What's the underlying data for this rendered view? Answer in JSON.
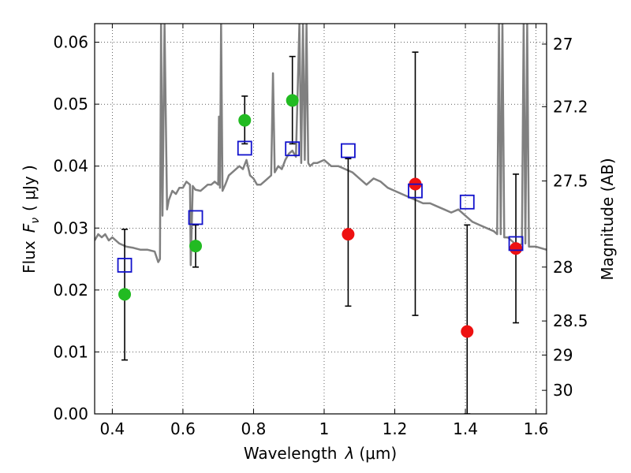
{
  "chart_data": {
    "type": "scatter",
    "xlabel": "Wavelength",
    "xlabel_symbol": "λ",
    "xlabel_unit": "(μm)",
    "ylabel": "Flux",
    "ylabel_symbol": "F",
    "ylabel_sub": "ν",
    "ylabel_unit": "( μJy )",
    "y2label": "Magnitude (AB)",
    "xlim": [
      0.35,
      1.63
    ],
    "ylim": [
      0.0,
      0.063
    ],
    "grid": true,
    "x_ticks": [
      {
        "value": 0.4,
        "label": "0.4"
      },
      {
        "value": 0.6,
        "label": "0.6"
      },
      {
        "value": 0.8,
        "label": "0.8"
      },
      {
        "value": 1.0,
        "label": "1"
      },
      {
        "value": 1.2,
        "label": "1.2"
      },
      {
        "value": 1.4,
        "label": "1.4"
      },
      {
        "value": 1.6,
        "label": "1.6"
      }
    ],
    "y_ticks": [
      {
        "value": 0.0,
        "label": "0.00"
      },
      {
        "value": 0.01,
        "label": "0.01"
      },
      {
        "value": 0.02,
        "label": "0.02"
      },
      {
        "value": 0.03,
        "label": "0.03"
      },
      {
        "value": 0.04,
        "label": "0.04"
      },
      {
        "value": 0.05,
        "label": "0.05"
      },
      {
        "value": 0.06,
        "label": "0.06"
      }
    ],
    "y2_ticks": [
      {
        "flux": 0.0597,
        "label": "27"
      },
      {
        "flux": 0.0496,
        "label": "27.2"
      },
      {
        "flux": 0.0376,
        "label": "27.5"
      },
      {
        "flux": 0.0237,
        "label": "28"
      },
      {
        "flux": 0.015,
        "label": "28.5"
      },
      {
        "flux": 0.0095,
        "label": "29"
      },
      {
        "flux": 0.0038,
        "label": "30"
      }
    ],
    "series": [
      {
        "role": "observed-optical",
        "marker": "circle",
        "color": "#22bb22",
        "points": [
          {
            "x": 0.435,
            "y": 0.0193,
            "err_low": 0.0087,
            "err_high": 0.0298
          },
          {
            "x": 0.636,
            "y": 0.0271,
            "err_low": 0.0237,
            "err_high": 0.0305
          },
          {
            "x": 0.775,
            "y": 0.0474,
            "err_low": 0.0436,
            "err_high": 0.0513
          },
          {
            "x": 0.91,
            "y": 0.0506,
            "err_low": 0.0436,
            "err_high": 0.0577
          }
        ]
      },
      {
        "role": "observed-ir",
        "marker": "circle",
        "color": "#ee1111",
        "points": [
          {
            "x": 1.068,
            "y": 0.029,
            "err_low": 0.0174,
            "err_high": 0.0412
          },
          {
            "x": 1.258,
            "y": 0.0371,
            "err_low": 0.0159,
            "err_high": 0.0584
          },
          {
            "x": 1.405,
            "y": 0.0133,
            "err_low": 0.0,
            "err_high": 0.0305
          },
          {
            "x": 1.543,
            "y": 0.0267,
            "err_low": 0.0147,
            "err_high": 0.0387
          }
        ]
      },
      {
        "role": "model-photometry",
        "marker": "open-square",
        "color": "#1111cc",
        "points": [
          {
            "x": 0.435,
            "y": 0.024
          },
          {
            "x": 0.636,
            "y": 0.0317
          },
          {
            "x": 0.775,
            "y": 0.0429
          },
          {
            "x": 0.91,
            "y": 0.0428
          },
          {
            "x": 1.068,
            "y": 0.0425
          },
          {
            "x": 1.258,
            "y": 0.036
          },
          {
            "x": 1.405,
            "y": 0.0342
          },
          {
            "x": 1.543,
            "y": 0.0275
          }
        ]
      }
    ],
    "model_spectrum": {
      "color": "#808080",
      "x": [
        0.35,
        0.36,
        0.37,
        0.38,
        0.39,
        0.4,
        0.42,
        0.44,
        0.46,
        0.48,
        0.5,
        0.52,
        0.53,
        0.535,
        0.538,
        0.542,
        0.548,
        0.555,
        0.56,
        0.57,
        0.58,
        0.59,
        0.6,
        0.61,
        0.62,
        0.622,
        0.628,
        0.635,
        0.65,
        0.66,
        0.67,
        0.68,
        0.69,
        0.7,
        0.702,
        0.705,
        0.708,
        0.712,
        0.72,
        0.73,
        0.74,
        0.75,
        0.76,
        0.77,
        0.78,
        0.79,
        0.8,
        0.81,
        0.82,
        0.83,
        0.84,
        0.85,
        0.855,
        0.86,
        0.87,
        0.88,
        0.89,
        0.9,
        0.91,
        0.92,
        0.93,
        0.935,
        0.94,
        0.945,
        0.95,
        0.955,
        0.96,
        0.97,
        0.98,
        1.0,
        1.02,
        1.04,
        1.06,
        1.08,
        1.1,
        1.12,
        1.14,
        1.16,
        1.18,
        1.2,
        1.22,
        1.24,
        1.26,
        1.28,
        1.3,
        1.32,
        1.34,
        1.36,
        1.38,
        1.4,
        1.42,
        1.44,
        1.46,
        1.48,
        1.49,
        1.495,
        1.5,
        1.505,
        1.51,
        1.52,
        1.53,
        1.54,
        1.55,
        1.56,
        1.565,
        1.57,
        1.575,
        1.58,
        1.6,
        1.63
      ],
      "y": [
        0.028,
        0.029,
        0.0285,
        0.029,
        0.028,
        0.0285,
        0.0275,
        0.027,
        0.0268,
        0.0265,
        0.0265,
        0.0262,
        0.0245,
        0.025,
        0.063,
        0.032,
        0.063,
        0.033,
        0.0345,
        0.036,
        0.0355,
        0.0365,
        0.0365,
        0.0375,
        0.037,
        0.024,
        0.0368,
        0.0362,
        0.036,
        0.0365,
        0.037,
        0.037,
        0.0375,
        0.037,
        0.048,
        0.0365,
        0.063,
        0.036,
        0.037,
        0.0385,
        0.039,
        0.0395,
        0.04,
        0.0395,
        0.041,
        0.0385,
        0.038,
        0.037,
        0.037,
        0.0375,
        0.038,
        0.0385,
        0.055,
        0.039,
        0.04,
        0.0395,
        0.041,
        0.042,
        0.0425,
        0.0415,
        0.063,
        0.0405,
        0.063,
        0.041,
        0.063,
        0.0405,
        0.04,
        0.0405,
        0.0405,
        0.041,
        0.04,
        0.04,
        0.0395,
        0.039,
        0.038,
        0.037,
        0.038,
        0.0375,
        0.0365,
        0.036,
        0.0355,
        0.035,
        0.0345,
        0.034,
        0.034,
        0.0335,
        0.033,
        0.0325,
        0.033,
        0.032,
        0.031,
        0.0305,
        0.03,
        0.0295,
        0.029,
        0.063,
        0.029,
        0.063,
        0.0285,
        0.0285,
        0.028,
        0.0275,
        0.027,
        0.0275,
        0.063,
        0.0275,
        0.063,
        0.027,
        0.027,
        0.0265
      ]
    }
  }
}
